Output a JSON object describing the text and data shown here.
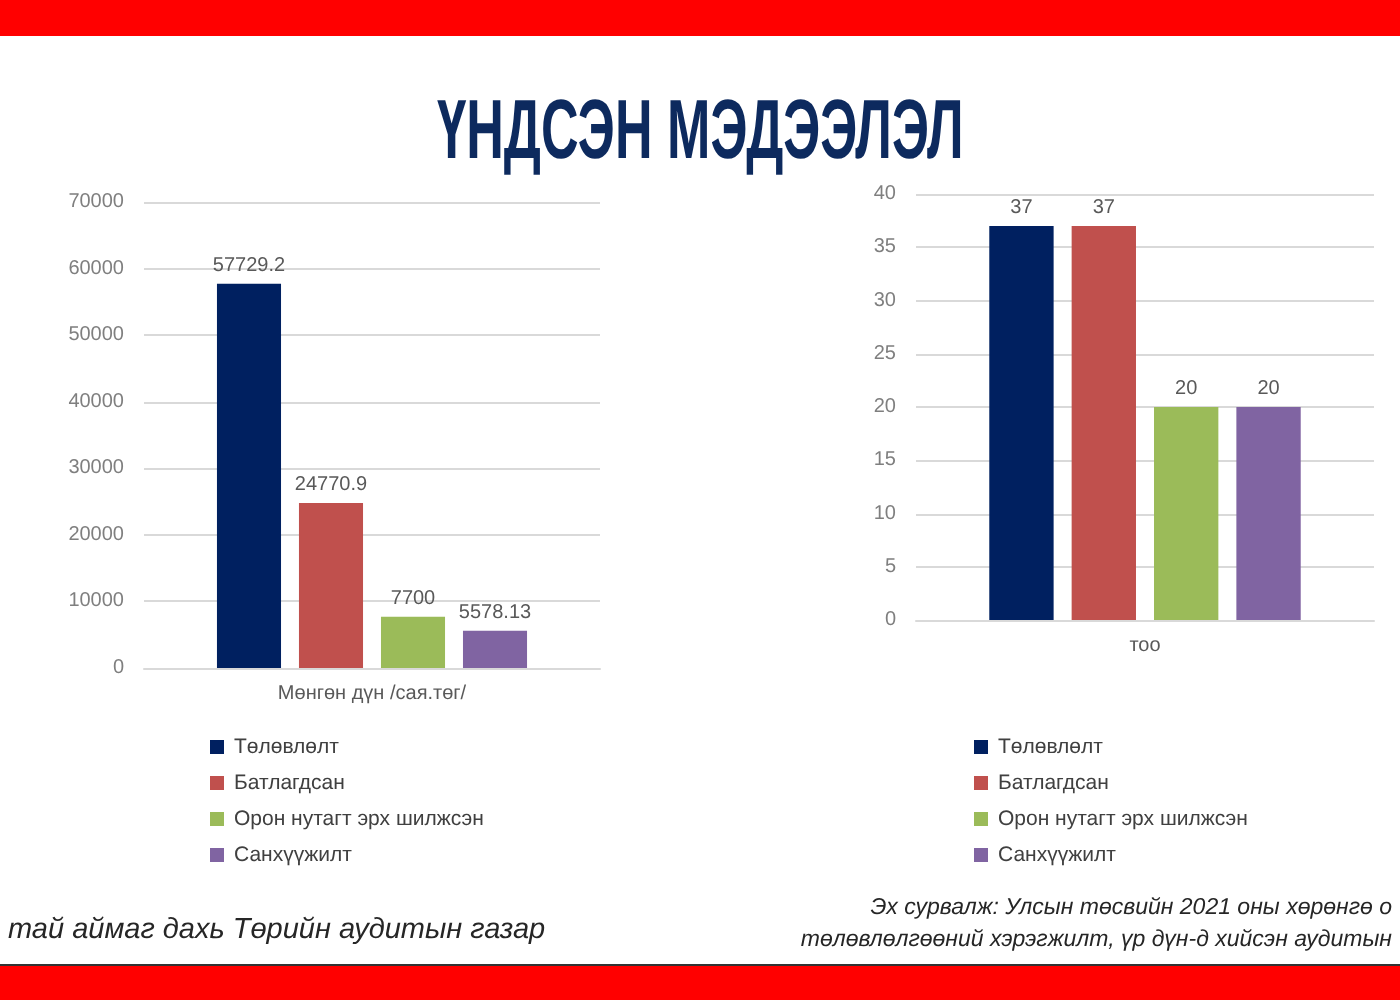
{
  "chart_data": [
    {
      "type": "bar",
      "title": "ҮНДСЭН МЭДЭЭЛЭЛ",
      "categories": [
        "Мөнгөн дүн /сая.төг/"
      ],
      "series": [
        {
          "name": "Төлөвлөлт",
          "color": "#002060",
          "values": [
            57729.2
          ]
        },
        {
          "name": "Батлагдсан",
          "color": "#c0504d",
          "values": [
            24770.9
          ]
        },
        {
          "name": "Орон нутагт эрх шилжсэн",
          "color": "#9bbb59",
          "values": [
            7700
          ]
        },
        {
          "name": "Санхүүжилт",
          "color": "#8064a2",
          "values": [
            5578.13
          ]
        }
      ],
      "ylim": [
        0,
        70000
      ],
      "yticks": [
        0,
        10000,
        20000,
        30000,
        40000,
        50000,
        60000,
        70000
      ],
      "grid": "y",
      "legend": "bottom left",
      "data_labels": true,
      "annotations": [
        "тай аймаг дахь Төрийн аудитын газар"
      ]
    },
    {
      "type": "bar",
      "categories": [
        "тоо"
      ],
      "series": [
        {
          "name": "Төлөвлөлт",
          "color": "#002060",
          "values": [
            37
          ]
        },
        {
          "name": "Батлагдсан",
          "color": "#c0504d",
          "values": [
            37
          ]
        },
        {
          "name": "Орон нутагт эрх шилжсэн",
          "color": "#9bbb59",
          "values": [
            20
          ]
        },
        {
          "name": "Санхүүжилт",
          "color": "#8064a2",
          "values": [
            20
          ]
        }
      ],
      "ylim": [
        0,
        40
      ],
      "yticks": [
        0,
        5,
        10,
        15,
        20,
        25,
        30,
        35,
        40
      ],
      "grid": "y",
      "legend": "bottom left",
      "data_labels": true,
      "annotations": [
        "Эх сурвалж: Улсын төсвийн 2021 оны хөрөнгө о\nтөлөвлөлгөөний хэрэгжилт, үр дүн-д хийсэн аудитын"
      ]
    }
  ]
}
